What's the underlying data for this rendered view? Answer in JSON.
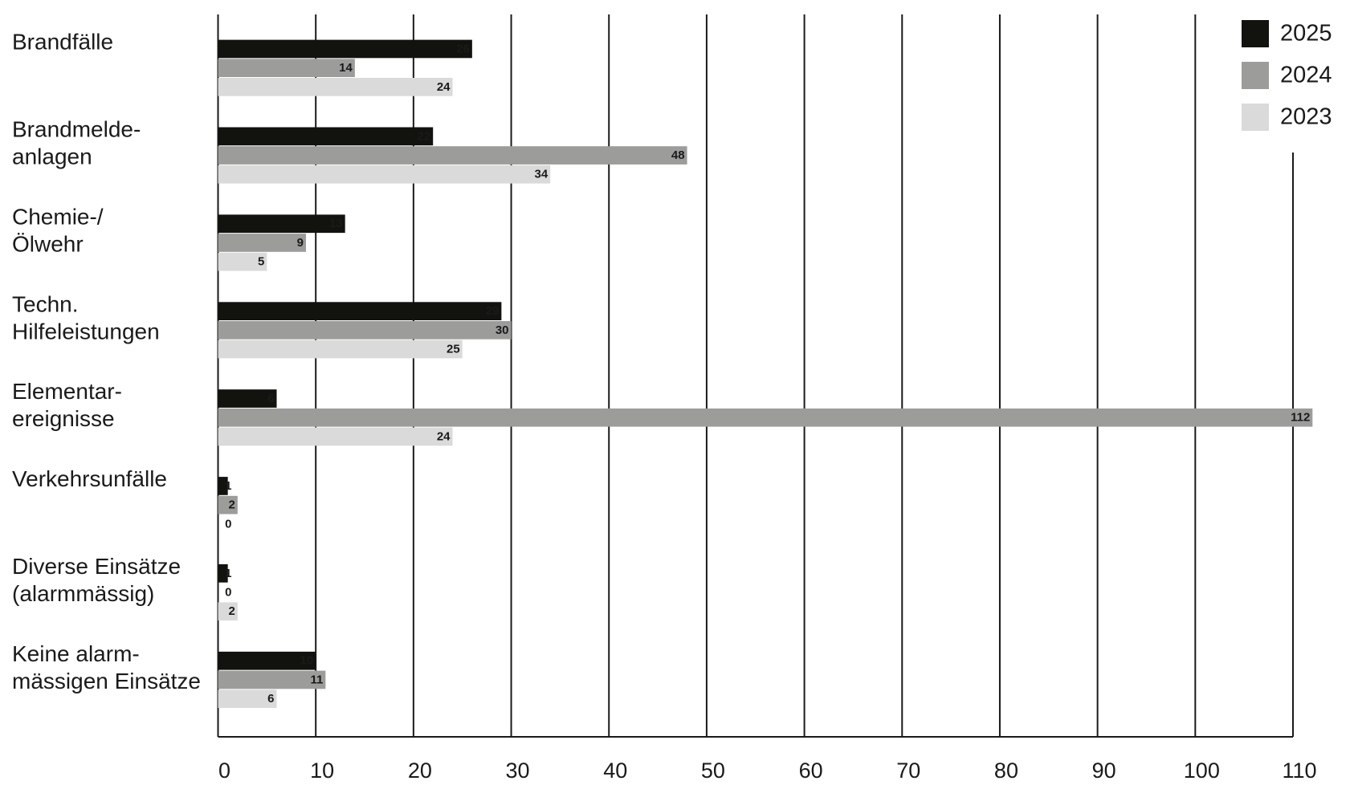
{
  "chart_data": {
    "type": "hbar",
    "categories": [
      "Brandfälle",
      "Brandmelde-\nanlagen",
      "Chemie-/\nÖlwehr",
      "Techn.\nHilfeleistungen",
      "Elementar-\nereignisse",
      "Verkehrsunfälle",
      "Diverse Einsätze\n(alarmmässig)",
      "Keine alarm-\nmässigen Einsätze"
    ],
    "series": [
      {
        "name": "2025",
        "color": "#12120f",
        "values": [
          26,
          22,
          13,
          29,
          6,
          1,
          1,
          10
        ]
      },
      {
        "name": "2024",
        "color": "#9c9d9b",
        "values": [
          14,
          48,
          9,
          30,
          112,
          2,
          0,
          11
        ]
      },
      {
        "name": "2023",
        "color": "#d9dad9",
        "values": [
          24,
          34,
          5,
          25,
          24,
          0,
          2,
          6
        ]
      }
    ],
    "xlim": [
      0,
      110
    ],
    "xticks": [
      0,
      10,
      20,
      30,
      40,
      50,
      60,
      70,
      80,
      90,
      100,
      110
    ],
    "grid": true,
    "legend": "top-right"
  }
}
